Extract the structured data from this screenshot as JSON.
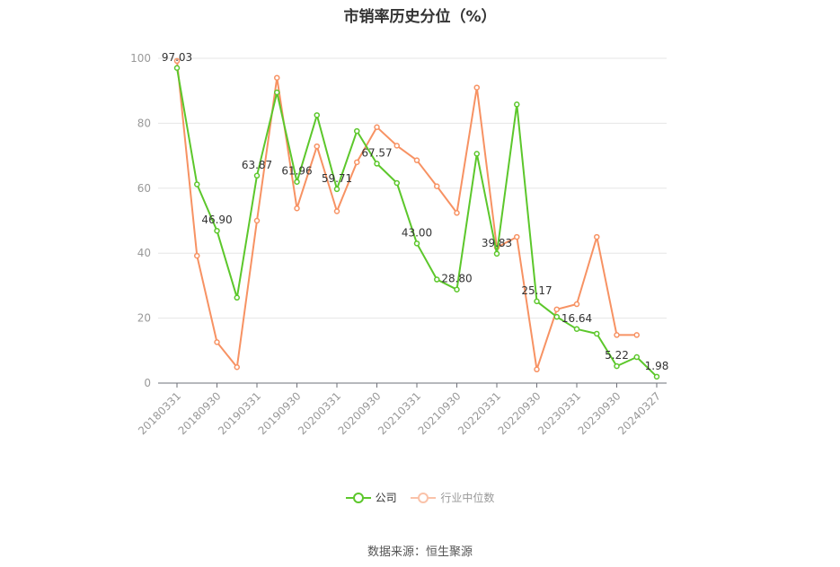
{
  "title": "市销率历史分位（%）",
  "source": "数据来源：恒生聚源",
  "legend": [
    {
      "label": "公司",
      "color": "#5cc72b"
    },
    {
      "label": "行业中位数",
      "color": "#f79263"
    }
  ],
  "colors": {
    "company": "#5cc72b",
    "industry": "#f79263",
    "grid": "#e6e6e6",
    "axis": "#999999"
  },
  "chart_data": {
    "type": "line",
    "title": "市销率历史分位（%）",
    "ylim": [
      0,
      100
    ],
    "yticks": [
      0,
      20,
      40,
      60,
      80,
      100
    ],
    "grid": true,
    "legend_position": "bottom",
    "x_tick_labels": [
      "20180331",
      "20180930",
      "20190331",
      "20190930",
      "20200331",
      "20200930",
      "20210331",
      "20210930",
      "20220331",
      "20220930",
      "20230331",
      "20230930",
      "20240327"
    ],
    "x": [
      "20180331",
      "20180630",
      "20180930",
      "20181231",
      "20190331",
      "20190630",
      "20190930",
      "20191231",
      "20200331",
      "20200630",
      "20200930",
      "20201231",
      "20210331",
      "20210630",
      "20210930",
      "20211231",
      "20220331",
      "20220630",
      "20220930",
      "20221231",
      "20230331",
      "20230630",
      "20230930",
      "20231231",
      "20240327"
    ],
    "series": [
      {
        "name": "公司",
        "values": [
          97.03,
          61.2,
          46.9,
          26.3,
          63.87,
          89.5,
          61.96,
          82.5,
          59.71,
          77.6,
          67.57,
          61.6,
          43.0,
          31.9,
          28.8,
          70.6,
          39.83,
          85.8,
          25.17,
          20.4,
          16.64,
          15.2,
          5.22,
          8.0,
          1.98
        ],
        "labels": [
          "97.03",
          "",
          "46.90",
          "",
          "63.87",
          "",
          "61.96",
          "",
          "59.71",
          "",
          "67.57",
          "",
          "43.00",
          "",
          "28.80",
          "",
          "39.83",
          "",
          "25.17",
          "",
          "16.64",
          "",
          "5.22",
          "",
          "1.98"
        ]
      },
      {
        "name": "行业中位数",
        "values": [
          99.2,
          39.2,
          12.6,
          4.9,
          50.0,
          94.0,
          53.8,
          72.9,
          52.9,
          68.0,
          78.8,
          73.1,
          68.6,
          60.6,
          52.4,
          91.0,
          41.8,
          45.0,
          4.2,
          22.7,
          24.3,
          45.0,
          14.8,
          14.8,
          null
        ]
      }
    ]
  }
}
